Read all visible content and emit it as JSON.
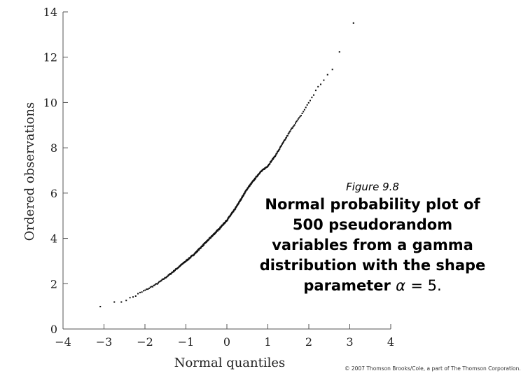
{
  "chart_data": {
    "type": "scatter",
    "xlabel": "Normal quantiles",
    "ylabel": "Ordered observations",
    "xlim": [
      -4,
      4
    ],
    "ylim": [
      0,
      14
    ],
    "xticks": [
      "−4",
      "−3",
      "−2",
      "−1",
      "0",
      "1",
      "2",
      "3",
      "4"
    ],
    "yticks": [
      "0",
      "2",
      "4",
      "6",
      "8",
      "10",
      "12",
      "14"
    ],
    "grid": false,
    "points": 500,
    "curve": {
      "x": [
        -2.97,
        -2.6,
        -2.3,
        -2.0,
        -1.7,
        -1.4,
        -1.1,
        -0.8,
        -0.5,
        -0.2,
        0.0,
        0.2,
        0.5,
        0.8,
        1.0,
        1.2,
        1.4,
        1.6,
        1.8,
        2.0,
        2.2,
        2.4,
        2.65,
        2.97
      ],
      "y": [
        1.05,
        1.2,
        1.4,
        1.7,
        2.0,
        2.4,
        2.85,
        3.3,
        3.85,
        4.4,
        4.8,
        5.3,
        6.2,
        6.9,
        7.2,
        7.7,
        8.3,
        8.9,
        9.4,
        10.0,
        10.6,
        11.1,
        11.6,
        13.5
      ]
    }
  },
  "caption": {
    "figure_label": "Figure 9.8",
    "text": "Normal probability plot of 500 pseudorandom variables from a gamma distribution with the shape parameter",
    "alpha": "α",
    "equals": "= 5."
  },
  "copyright": "© 2007 Thomson Brooks/Cole, a part of The Thomson Corporation."
}
